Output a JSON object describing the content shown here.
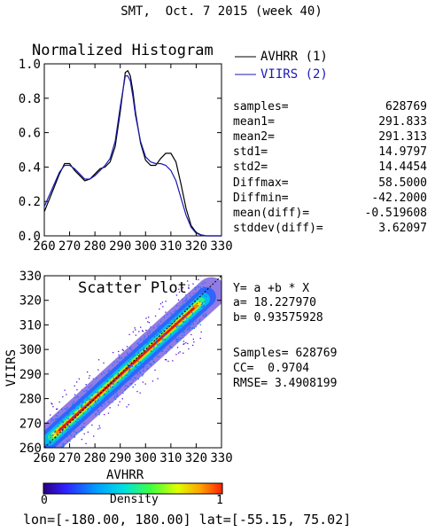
{
  "header": {
    "title": "SMT,  Oct. 7 2015 (week 40)"
  },
  "histogram": {
    "title": "Normalized Histogram",
    "legend": [
      {
        "label": "AVHRR (1)",
        "color": "#000000"
      },
      {
        "label": "VIIRS (2)",
        "color": "#1a1ab4"
      }
    ]
  },
  "stats": [
    {
      "label": "samples=",
      "value": "628769"
    },
    {
      "label": "mean1=",
      "value": "291.833"
    },
    {
      "label": "mean2=",
      "value": "291.313"
    },
    {
      "label": "std1=",
      "value": "14.9797"
    },
    {
      "label": "std2=",
      "value": "14.4454"
    },
    {
      "label": "Diffmax=",
      "value": "58.5000"
    },
    {
      "label": "Diffmin=",
      "value": "-42.2000"
    },
    {
      "label": "mean(diff)=",
      "value": "-0.519608"
    },
    {
      "label": "stddev(diff)=",
      "value": "3.62097"
    }
  ],
  "scatter": {
    "title": "Scatter Plot",
    "fit": {
      "equation": "Y= a +b * X",
      "a_line": "a= 18.227970",
      "b_line": "b= 0.93575928",
      "samples_line": "Samples= 628769",
      "cc_line": "CC=  0.9704",
      "rmse_line": "RMSE= 3.4908199"
    }
  },
  "colorbar": {
    "label": "Density",
    "min_label": "0",
    "max_label": "1"
  },
  "footer": {
    "range": "lon=[-180.00, 180.00] lat=[-55.15, 75.02]"
  },
  "chart_data": [
    {
      "type": "line",
      "title": "Normalized Histogram",
      "xlim": [
        260,
        330
      ],
      "ylim": [
        0,
        1
      ],
      "xticks": [
        "260",
        "270",
        "280",
        "290",
        "300",
        "310",
        "320",
        "330"
      ],
      "yticks": [
        "0.0",
        "0.2",
        "0.4",
        "0.6",
        "0.8",
        "1.0"
      ],
      "x": [
        260,
        263,
        266,
        268,
        270,
        272,
        274,
        276,
        278,
        280,
        282,
        284,
        286,
        288,
        290,
        292,
        293,
        294,
        295,
        296,
        298,
        300,
        302,
        304,
        306,
        308,
        310,
        312,
        314,
        316,
        318,
        320,
        322,
        324,
        326,
        328,
        330
      ],
      "series": [
        {
          "name": "AVHRR (1)",
          "color": "#000000",
          "values": [
            0.14,
            0.25,
            0.36,
            0.42,
            0.42,
            0.38,
            0.35,
            0.32,
            0.33,
            0.36,
            0.39,
            0.4,
            0.43,
            0.52,
            0.72,
            0.95,
            0.96,
            0.93,
            0.84,
            0.72,
            0.54,
            0.44,
            0.41,
            0.41,
            0.45,
            0.48,
            0.48,
            0.43,
            0.3,
            0.16,
            0.06,
            0.02,
            0.005,
            0.0,
            0.0,
            0.0,
            0.0
          ]
        },
        {
          "name": "VIIRS (2)",
          "color": "#1a1ab4",
          "values": [
            0.17,
            0.27,
            0.37,
            0.41,
            0.41,
            0.39,
            0.36,
            0.33,
            0.33,
            0.35,
            0.38,
            0.41,
            0.45,
            0.55,
            0.75,
            0.93,
            0.93,
            0.9,
            0.81,
            0.7,
            0.55,
            0.46,
            0.43,
            0.42,
            0.42,
            0.41,
            0.38,
            0.32,
            0.22,
            0.12,
            0.05,
            0.015,
            0.005,
            0.0,
            0.0,
            0.0,
            0.0
          ]
        }
      ]
    },
    {
      "type": "scatter",
      "title": "Scatter Plot",
      "xlabel": "AVHRR",
      "ylabel": "VIIRS",
      "xlim": [
        260,
        330
      ],
      "ylim": [
        260,
        330
      ],
      "xticks": [
        "260",
        "270",
        "280",
        "290",
        "300",
        "310",
        "320",
        "330"
      ],
      "yticks": [
        "260",
        "270",
        "280",
        "290",
        "300",
        "310",
        "320",
        "330"
      ],
      "fit_a": 18.22797,
      "fit_b": 0.93575928,
      "samples": 628769,
      "cc": 0.9704,
      "rmse": 3.4908199,
      "colorscale": "Density 0-1"
    }
  ]
}
